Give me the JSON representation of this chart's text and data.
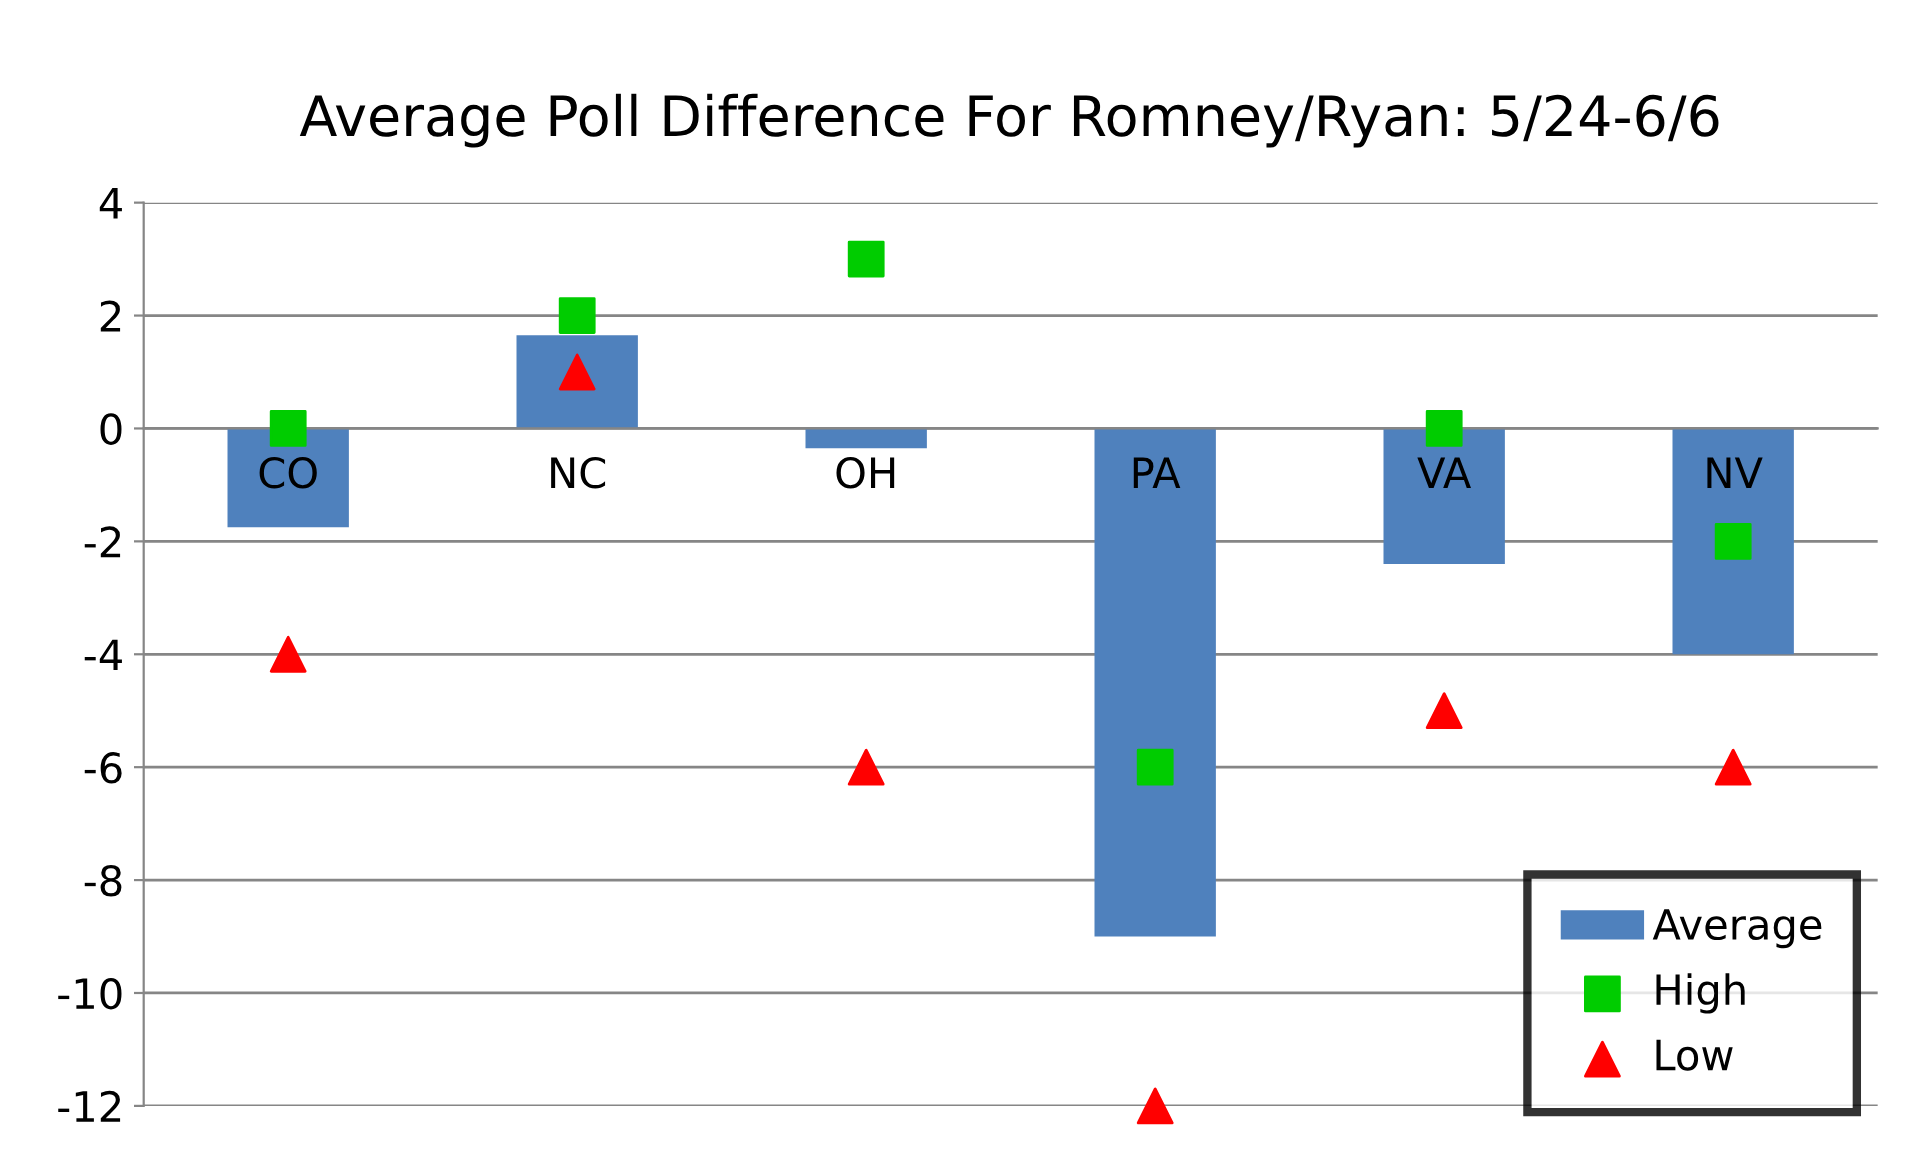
{
  "chart_data": {
    "type": "bar",
    "title": "Average Poll Difference For Romney/Ryan: 5/24-6/6",
    "categories": [
      "CO",
      "NC",
      "OH",
      "PA",
      "VA",
      "NV"
    ],
    "series": [
      {
        "name": "Average",
        "color": "#4f81bd",
        "values": [
          -1.75,
          1.65,
          -0.35,
          -9,
          -2.4,
          -4
        ]
      },
      {
        "name": "High",
        "type": "scatter",
        "marker": "square",
        "color": "#00cc00",
        "x": [
          "CO",
          "NC",
          "OH",
          "PA",
          "VA",
          "NV"
        ],
        "values": [
          0,
          2,
          3,
          -6,
          0,
          -2
        ]
      },
      {
        "name": "Low",
        "type": "scatter",
        "marker": "triangle",
        "color": "#ff0000",
        "x": [
          "CO",
          "NC",
          "OH",
          "PA",
          "VA",
          "NV"
        ],
        "values": [
          -4,
          1,
          -6,
          -12,
          -5,
          -6
        ]
      }
    ],
    "ylim": [
      -12,
      4
    ],
    "yticks": [
      -12,
      -10,
      -8,
      -6,
      -4,
      -2,
      0,
      2,
      4
    ],
    "grid": "y",
    "legend": "bottom right"
  }
}
